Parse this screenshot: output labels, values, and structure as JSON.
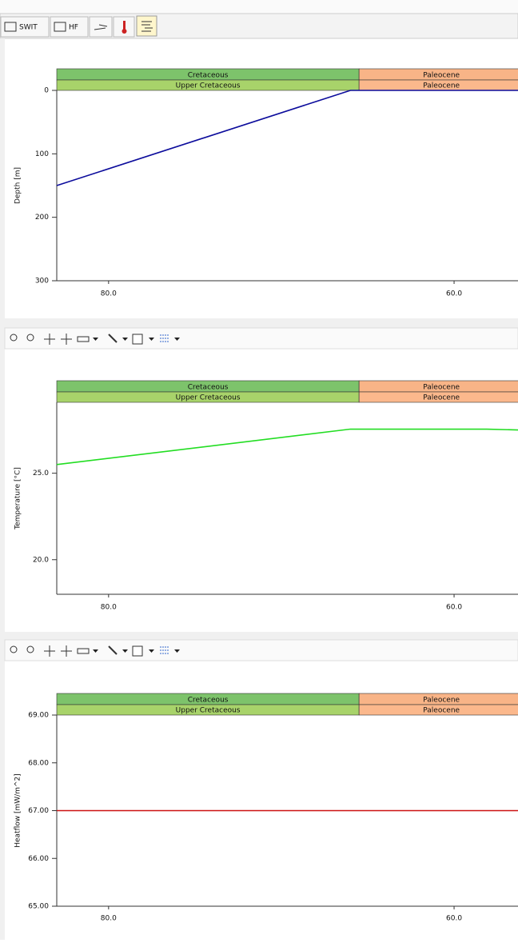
{
  "toolbar": {
    "buttons": [
      "SWIT",
      "HF"
    ]
  },
  "chart_data": [
    {
      "type": "line",
      "y_label": "Depth [m]",
      "x": [
        83.0,
        66.0,
        56.3
      ],
      "series": [
        {
          "color": "#0c0c9c",
          "values": [
            150,
            0,
            0
          ]
        }
      ],
      "xlim": [
        83.0,
        56.3
      ],
      "xticks": [
        {
          "value": 80,
          "label": "80.0"
        },
        {
          "value": 60,
          "label": "60.0"
        }
      ],
      "ylim": [
        300,
        0
      ],
      "yticks": [
        0,
        100,
        200,
        300
      ],
      "boundary": 65.5,
      "periods": [
        "Cretaceous",
        "Paleocene"
      ],
      "epochs": [
        "Upper Cretaceous",
        "Paleocene"
      ]
    },
    {
      "type": "line",
      "y_label": "Temperature [°C]",
      "x": [
        83.0,
        66.0,
        58.1,
        56.3
      ],
      "series": [
        {
          "color": "#22dd22",
          "values": [
            25.5,
            27.55,
            27.55,
            27.5
          ]
        }
      ],
      "xlim": [
        83.0,
        56.3
      ],
      "xticks": [
        {
          "value": 80,
          "label": "80.0"
        },
        {
          "value": 60,
          "label": "60.0"
        }
      ],
      "ylim": [
        18,
        29.1
      ],
      "yticks": [
        {
          "value": 20,
          "label": "20.0"
        },
        {
          "value": 25,
          "label": "25.0"
        }
      ],
      "boundary": 65.5,
      "periods": [
        "Cretaceous",
        "Paleocene"
      ],
      "epochs": [
        "Upper Cretaceous",
        "Paleocene"
      ]
    },
    {
      "type": "line",
      "y_label": "Heatflow [mW/m^2]",
      "x": [
        83.0,
        56.3
      ],
      "series": [
        {
          "color": "#cc1111",
          "values": [
            67,
            67
          ]
        }
      ],
      "xlim": [
        83.0,
        56.3
      ],
      "xticks": [
        {
          "value": 80,
          "label": "80.0"
        },
        {
          "value": 60,
          "label": "60.0"
        }
      ],
      "ylim": [
        65,
        69
      ],
      "yticks": [
        {
          "value": 65,
          "label": "65.00"
        },
        {
          "value": 66,
          "label": "66.00"
        },
        {
          "value": 67,
          "label": "67.00"
        },
        {
          "value": 68,
          "label": "68.00"
        },
        {
          "value": 69,
          "label": "69.00"
        }
      ],
      "boundary": 65.5,
      "periods": [
        "Cretaceous",
        "Paleocene"
      ],
      "epochs": [
        "Upper Cretaceous",
        "Paleocene"
      ]
    }
  ]
}
